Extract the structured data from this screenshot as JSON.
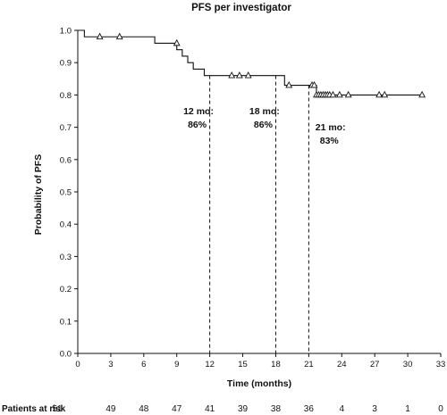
{
  "chart_data": {
    "type": "line",
    "title": "PFS per investigator",
    "xlabel": "Time (months)",
    "ylabel": "Probability of PFS",
    "xlim": [
      0,
      33
    ],
    "ylim": [
      0,
      1.0
    ],
    "x_ticks": [
      "0",
      "3",
      "6",
      "9",
      "12",
      "15",
      "18",
      "21",
      "24",
      "27",
      "30",
      "33"
    ],
    "y_ticks": [
      "0.0",
      "0.1",
      "0.2",
      "0.3",
      "0.4",
      "0.5",
      "0.6",
      "0.7",
      "0.8",
      "0.9",
      "1.0"
    ],
    "grid": false,
    "legend": "none",
    "series": [
      {
        "steps": [
          [
            0,
            1.0
          ],
          [
            0.6,
            0.98
          ],
          [
            7.0,
            0.96
          ],
          [
            9.0,
            0.94
          ],
          [
            9.5,
            0.92
          ],
          [
            10.0,
            0.9
          ],
          [
            10.5,
            0.88
          ],
          [
            11.5,
            0.86
          ],
          [
            18.8,
            0.83
          ],
          [
            21.7,
            0.8
          ],
          [
            31.5,
            0.8
          ]
        ],
        "censored": [
          [
            2.0,
            0.98
          ],
          [
            3.8,
            0.98
          ],
          [
            9.0,
            0.96
          ],
          [
            14.0,
            0.86
          ],
          [
            14.7,
            0.86
          ],
          [
            15.5,
            0.86
          ],
          [
            19.2,
            0.83
          ],
          [
            21.3,
            0.83
          ],
          [
            21.5,
            0.83
          ],
          [
            21.7,
            0.8
          ],
          [
            21.9,
            0.8
          ],
          [
            22.1,
            0.8
          ],
          [
            22.3,
            0.8
          ],
          [
            22.5,
            0.8
          ],
          [
            22.7,
            0.8
          ],
          [
            22.9,
            0.8
          ],
          [
            23.2,
            0.8
          ],
          [
            23.8,
            0.8
          ],
          [
            24.6,
            0.8
          ],
          [
            27.4,
            0.8
          ],
          [
            27.9,
            0.8
          ],
          [
            31.3,
            0.8
          ]
        ],
        "color": "#111111"
      }
    ],
    "reference_lines": [
      {
        "x": 12,
        "y": 0.86
      },
      {
        "x": 18,
        "y": 0.86
      },
      {
        "x": 21,
        "y": 0.83
      }
    ],
    "annotations": [
      {
        "line1": "12 mo:",
        "line2": "86%",
        "x": 9.6,
        "y": 0.74
      },
      {
        "line1": "18 mo:",
        "line2": "86%",
        "x": 15.6,
        "y": 0.74
      },
      {
        "line1": "21 mo:",
        "line2": "83%",
        "x": 21.6,
        "y": 0.69
      }
    ],
    "risk_table": {
      "label": "Patients at risk",
      "values": [
        "51",
        "49",
        "48",
        "47",
        "41",
        "39",
        "38",
        "36",
        "4",
        "3",
        "1",
        "0"
      ]
    }
  }
}
